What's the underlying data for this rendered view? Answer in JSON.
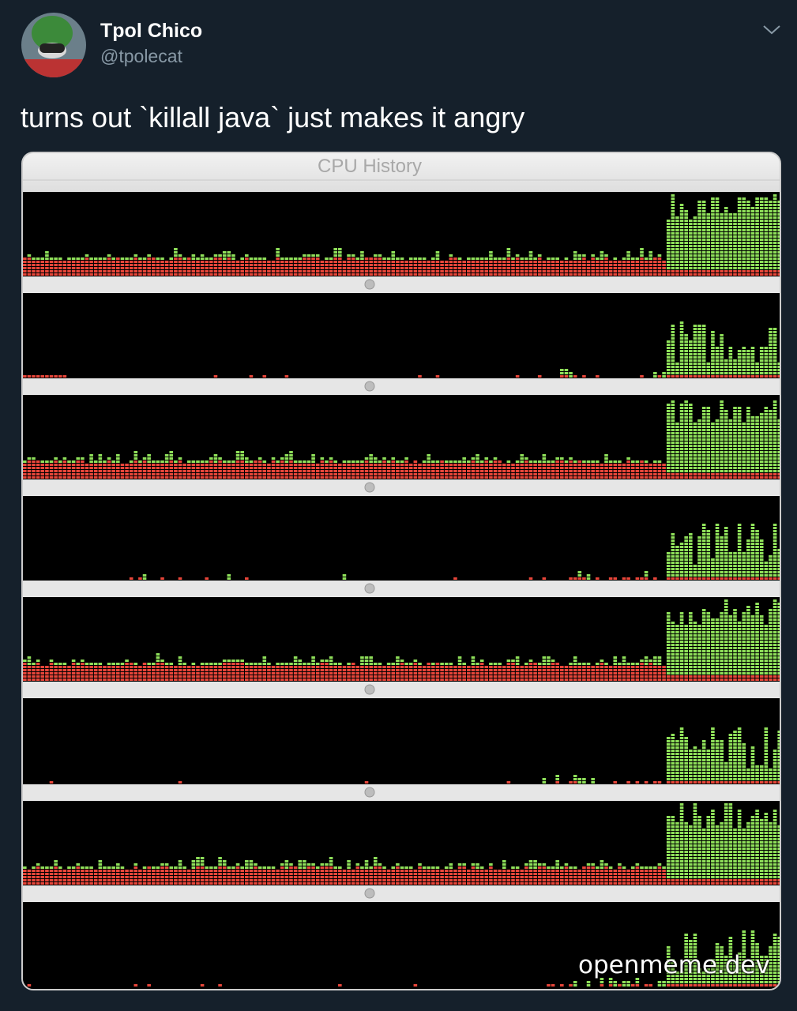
{
  "tweet": {
    "author_name": "Tpol Chico",
    "handle": "@tpolecat",
    "text": "turns out `killall java` just makes it angry"
  },
  "image": {
    "window_title": "CPU History",
    "watermark": "openmeme.dev"
  }
}
